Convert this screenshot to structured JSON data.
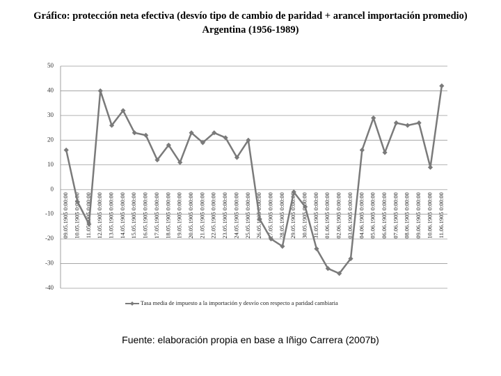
{
  "chart_data": {
    "type": "line",
    "title": "Gráfico: protección neta efectiva (desvío tipo de cambio de paridad + arancel importación promedio)",
    "subtitle": "Argentina (1956-1989)",
    "source": "Fuente: elaboración propia en base a Iñigo Carrera (2007b)",
    "categories": [
      "09.05.1905 0:00:00",
      "10.05.1905 0:00:00",
      "11.05.1905 0:00:00",
      "12.05.1905 0:00:00",
      "13.05.1905 0:00:00",
      "14.05.1905 0:00:00",
      "15.05.1905 0:00:00",
      "16.05.1905 0:00:00",
      "17.05.1905 0:00:00",
      "18.05.1905 0:00:00",
      "19.05.1905 0:00:00",
      "20.05.1905 0:00:00",
      "21.05.1905 0:00:00",
      "22.05.1905 0:00:00",
      "23.05.1905 0:00:00",
      "24.05.1905 0:00:00",
      "25.05.1905 0:00:00",
      "26.05.1905 0:00:00",
      "27.05.1905 0:00:00",
      "28.05.1905 0:00:00",
      "29.05.1905 0:00:00",
      "30.05.1905 0:00:00",
      "31.05.1905 0:00:00",
      "01.06.1905 0:00:00",
      "02.06.1905 0:00:00",
      "03.06.1905 0:00:00",
      "04.06.1905 0:00:00",
      "05.06.1905 0:00:00",
      "06.06.1905 0:00:00",
      "07.06.1905 0:00:00",
      "08.06.1905 0:00:00",
      "09.06.1905 0:00:00",
      "10.06.1905 0:00:00",
      "11.06.1905 0:00:00"
    ],
    "series": [
      {
        "name": "Tasa media de impuesto a la importación y desvío con respecto a paridad cambiaria",
        "color": "#7a7a7a",
        "values": [
          16,
          -5,
          -14,
          40,
          26,
          32,
          23,
          22,
          12,
          18,
          11,
          23,
          19,
          23,
          21,
          13,
          20,
          -12,
          -20,
          -23,
          -1,
          -7,
          -24,
          -32,
          -34,
          -28,
          16,
          29,
          15,
          27,
          26,
          27,
          9,
          42
        ]
      }
    ],
    "ylim": [
      -40,
      50
    ],
    "yticks": [
      -40,
      -30,
      -20,
      -10,
      0,
      10,
      20,
      30,
      40,
      50
    ],
    "grid": true,
    "legend": "bottom"
  }
}
